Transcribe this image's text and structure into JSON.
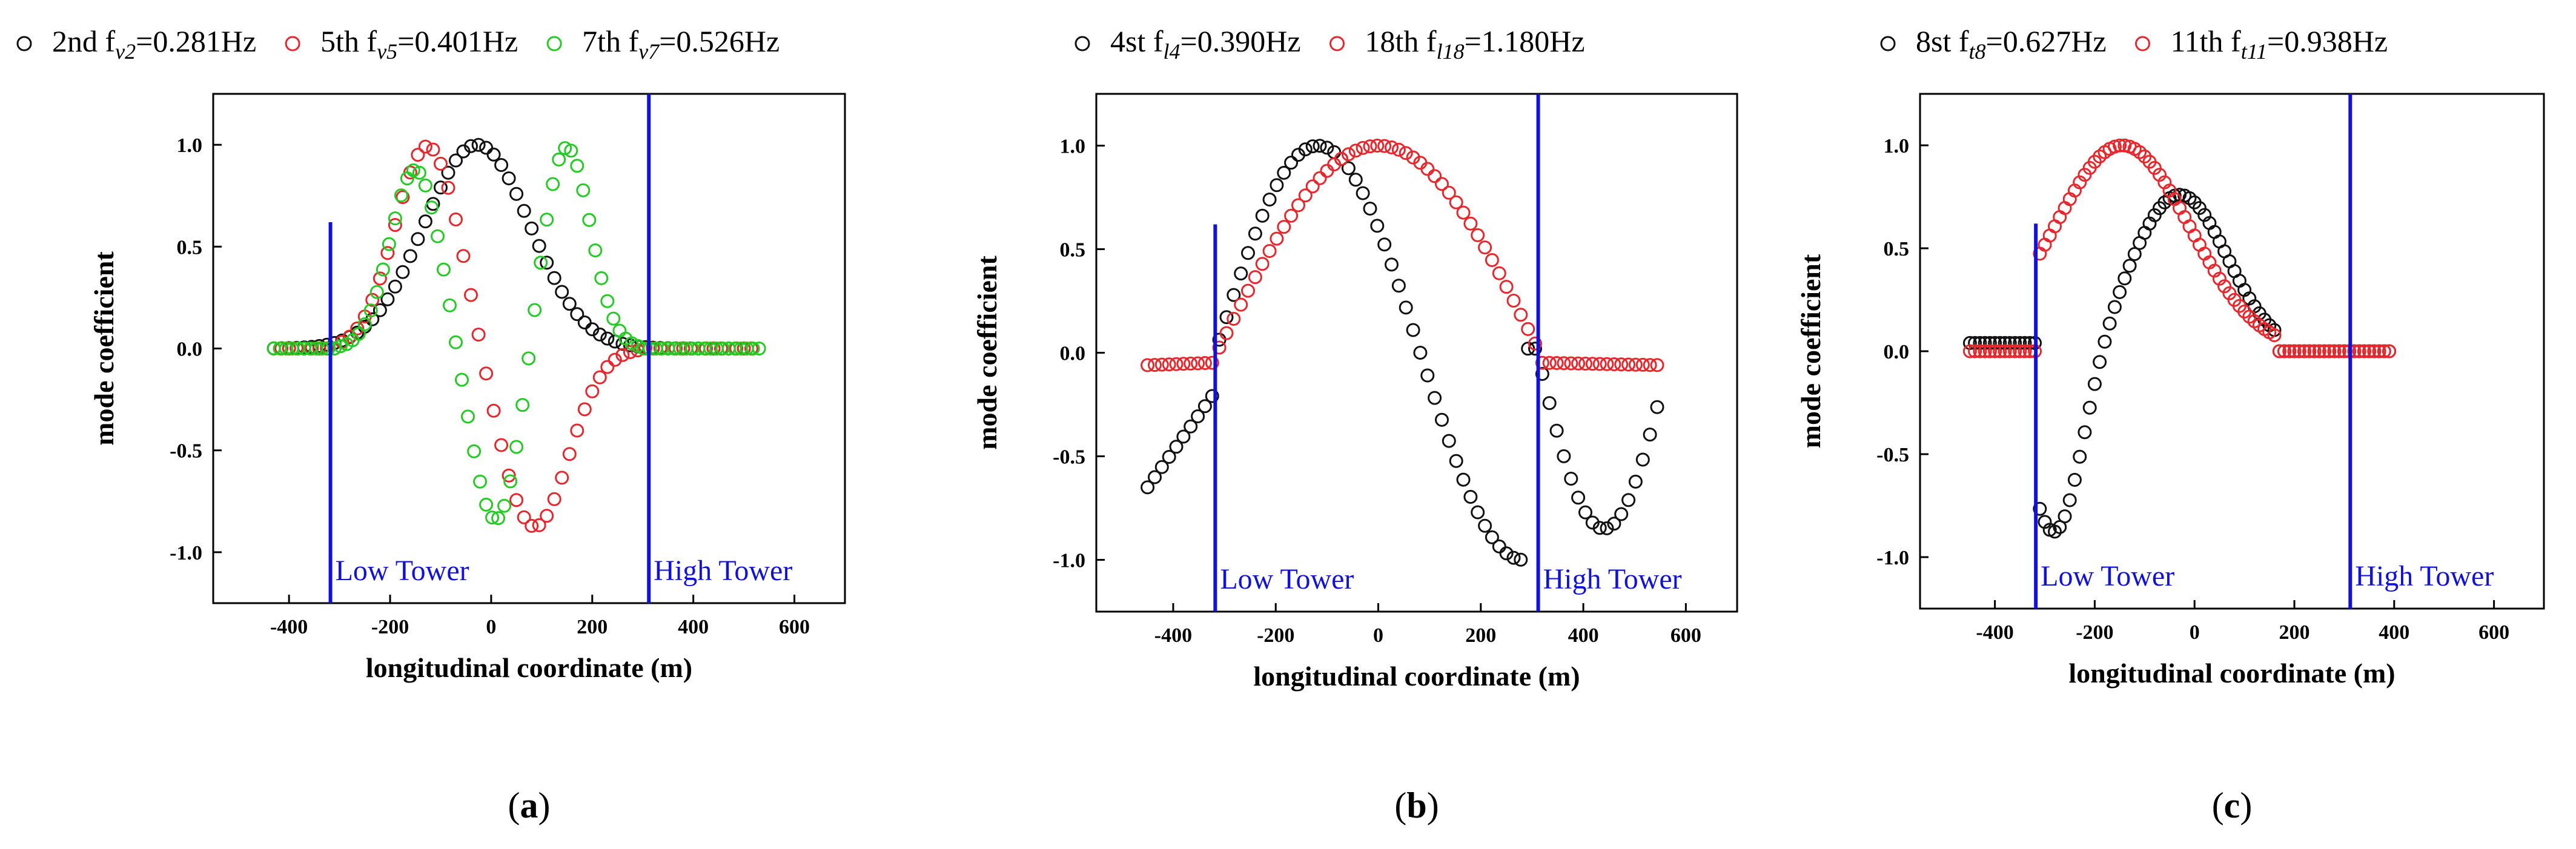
{
  "figure_panels": [
    "(a)",
    "(b)",
    "(c)"
  ],
  "colors": {
    "black": "#111111",
    "red": "#e8262b",
    "green": "#22cc22",
    "blue": "#1111dd"
  },
  "chart_data": [
    {
      "type": "scatter",
      "panel_label": "(a)",
      "xlabel": "longitudinal coordinate (m)",
      "ylabel": "mode coefficient",
      "xlim": [
        -550,
        700
      ],
      "ylim": [
        -1.25,
        1.25
      ],
      "xticks": [
        -400,
        -200,
        0,
        200,
        400,
        600
      ],
      "yticks": [
        -1.0,
        -0.5,
        0.0,
        0.5,
        1.0
      ],
      "tower_lines": [
        {
          "x": -318,
          "y_top": 0.62,
          "label": "Low Tower"
        },
        {
          "x": 312,
          "y_top": 1.25,
          "label": "High Tower"
        }
      ],
      "legend_position": "top",
      "series": [
        {
          "name": "2nd",
          "legend": "2nd f",
          "sub": "v2",
          "freq": "=0.281Hz",
          "color": "black",
          "shape": "vertical_mode_2"
        },
        {
          "name": "5th",
          "legend": "5th  f",
          "sub": "v5",
          "freq": "=0.401Hz",
          "color": "red",
          "shape": "vertical_mode_5"
        },
        {
          "name": "7th",
          "legend": "7th  f",
          "sub": "v7",
          "freq": "=0.526Hz",
          "color": "green",
          "shape": "vertical_mode_7"
        }
      ]
    },
    {
      "type": "scatter",
      "panel_label": "(b)",
      "xlabel": "longitudinal coordinate (m)",
      "ylabel": "mode coefficient",
      "xlim": [
        -550,
        700
      ],
      "ylim": [
        -1.25,
        1.25
      ],
      "xticks": [
        -400,
        -200,
        0,
        200,
        400,
        600
      ],
      "yticks": [
        -1.0,
        -0.5,
        0.0,
        0.5,
        1.0
      ],
      "tower_lines": [
        {
          "x": -318,
          "y_top": 0.62,
          "label": "Low Tower"
        },
        {
          "x": 312,
          "y_top": 1.25,
          "label": "High Tower"
        }
      ],
      "legend_position": "top",
      "series": [
        {
          "name": "4st",
          "legend": "4st f",
          "sub": "l4",
          "freq": "=0.390Hz",
          "color": "black",
          "shape": "lateral_mode_4"
        },
        {
          "name": "18th",
          "legend": "18th  f",
          "sub": "l18",
          "freq": "=1.180Hz",
          "color": "red",
          "shape": "lateral_mode_18"
        }
      ]
    },
    {
      "type": "scatter",
      "panel_label": "(c)",
      "xlabel": "longitudinal coordinate (m)",
      "ylabel": "mode coefficient",
      "xlim": [
        -550,
        700
      ],
      "ylim": [
        -1.25,
        1.25
      ],
      "xticks": [
        -400,
        -200,
        0,
        200,
        400,
        600
      ],
      "yticks": [
        -1.0,
        -0.5,
        0.0,
        0.5,
        1.0
      ],
      "tower_lines": [
        {
          "x": -318,
          "y_top": 0.62,
          "label": "Low Tower"
        },
        {
          "x": 312,
          "y_top": 1.25,
          "label": "High Tower"
        }
      ],
      "legend_position": "top",
      "series": [
        {
          "name": "8st",
          "legend": "8st f",
          "sub": "t8",
          "freq": "=0.627Hz",
          "color": "black",
          "shape": "torsion_mode_8"
        },
        {
          "name": "11th",
          "legend": "11th  f",
          "sub": "t11",
          "freq": "=0.938Hz",
          "color": "red",
          "shape": "torsion_mode_11"
        }
      ]
    }
  ]
}
